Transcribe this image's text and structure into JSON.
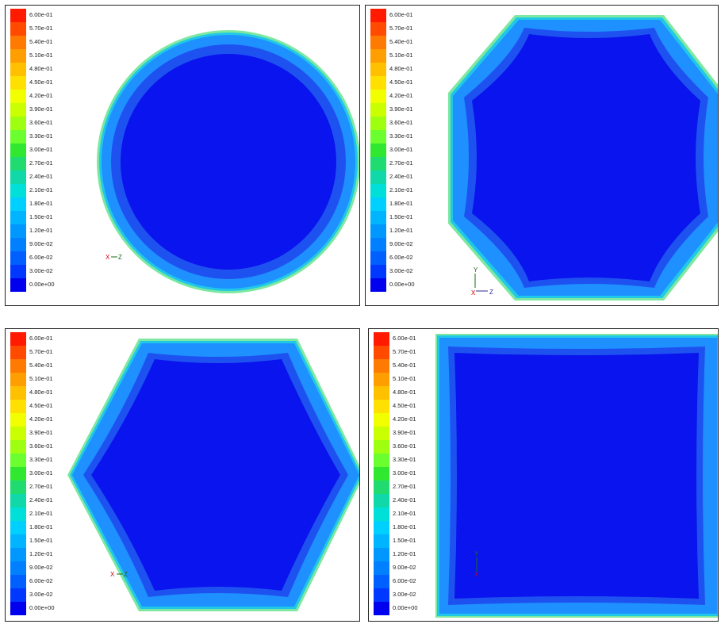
{
  "colorbar": {
    "labels": [
      "6.00e-01",
      "5.70e-01",
      "5.40e-01",
      "5.10e-01",
      "4.80e-01",
      "4.50e-01",
      "4.20e-01",
      "3.90e-01",
      "3.60e-01",
      "3.30e-01",
      "3.00e-01",
      "2.70e-01",
      "2.40e-01",
      "2.10e-01",
      "1.80e-01",
      "1.50e-01",
      "1.20e-01",
      "9.00e-02",
      "6.00e-02",
      "3.00e-02",
      "0.00e+00"
    ],
    "colors": [
      "#ff1a00",
      "#ff4a00",
      "#ff7a00",
      "#ff9e00",
      "#ffc000",
      "#ffe000",
      "#f2ff00",
      "#c9ff00",
      "#9fff10",
      "#6cff30",
      "#30e830",
      "#20dc70",
      "#10d8a8",
      "#00e0d8",
      "#00d0ff",
      "#00b4ff",
      "#0098ff",
      "#0080ff",
      "#0060ff",
      "#0038ff",
      "#0000ee"
    ]
  },
  "panels": [
    {
      "shape": "circle",
      "axis_x": "X",
      "axis_y": "",
      "axis_z": "Z"
    },
    {
      "shape": "octagon",
      "axis_x": "X",
      "axis_y": "Y",
      "axis_z": "Z"
    },
    {
      "shape": "hexagon",
      "axis_x": "X",
      "axis_y": "",
      "axis_z": "Z"
    },
    {
      "shape": "square",
      "axis_x": "X",
      "axis_y": "Y",
      "axis_z": ""
    }
  ],
  "field_colors": {
    "core": "#0a14ee",
    "ring1": "#1e52f0",
    "ring2": "#1e90ff",
    "ring3": "#20c8e8",
    "edge": "#7ee8a0"
  }
}
